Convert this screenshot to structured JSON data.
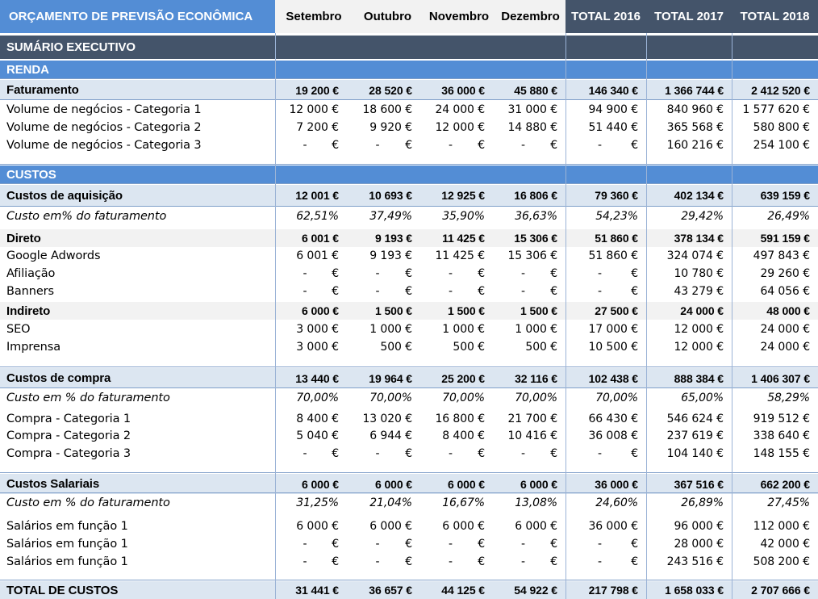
{
  "header": {
    "title": "ORÇAMENTO DE PREVISÃO ECONÔMICA",
    "months": [
      "Setembro",
      "Outubro",
      "Novembro",
      "Dezembro"
    ],
    "totals": [
      "TOTAL 2016",
      "TOTAL 2017",
      "TOTAL 2018"
    ]
  },
  "colors": {
    "title_bg": "#538dd5",
    "total_header_bg": "#44546a",
    "section_bg": "#538dd5",
    "group_bg": "#dce6f1"
  },
  "rows": [
    {
      "type": "summary",
      "label": "SUMÁRIO EXECUTIVO"
    },
    {
      "type": "section",
      "label": "RENDA"
    },
    {
      "type": "group",
      "label": "Faturamento",
      "values": [
        "19 200 €",
        "28 520 €",
        "36 000 €",
        "45 880 €",
        "146 340 €",
        "1 366 744 €",
        "2 412 520 €"
      ]
    },
    {
      "type": "item",
      "label": "Volume de negócios - Categoria 1",
      "values": [
        "12 000 €",
        "18 600 €",
        "24 000 €",
        "31 000 €",
        "94 900 €",
        "840 960 €",
        "1 577 620 €"
      ]
    },
    {
      "type": "item",
      "label": "Volume de negócios - Categoria 2",
      "values": [
        "7 200 €",
        "9 920 €",
        "12 000 €",
        "14 880 €",
        "51 440 €",
        "365 568 €",
        "580 800 €"
      ]
    },
    {
      "type": "item",
      "label": "Volume de negócios - Categoria 3",
      "values": [
        "-",
        "-",
        "-",
        "-",
        "-",
        "160 216 €",
        "254 100 €"
      ]
    },
    {
      "type": "section",
      "label": "CUSTOS"
    },
    {
      "type": "group",
      "label": "Custos de aquisição",
      "values": [
        "12 001 €",
        "10 693 €",
        "12 925 €",
        "16 806 €",
        "79 360 €",
        "402 134 €",
        "639 159 €"
      ]
    },
    {
      "type": "pct",
      "label": "Custo em% do faturamento",
      "values": [
        "62,51%",
        "37,49%",
        "35,90%",
        "36,63%",
        "54,23%",
        "29,42%",
        "26,49%"
      ]
    },
    {
      "type": "subgroup",
      "label": "Direto",
      "values": [
        "6 001 €",
        "9 193 €",
        "11 425 €",
        "15 306 €",
        "51 860 €",
        "378 134 €",
        "591 159 €"
      ]
    },
    {
      "type": "item",
      "label": "Google Adwords",
      "values": [
        "6 001 €",
        "9 193 €",
        "11 425 €",
        "15 306 €",
        "51 860 €",
        "324 074 €",
        "497 843 €"
      ]
    },
    {
      "type": "item",
      "label": "Afiliação",
      "values": [
        "-",
        "-",
        "-",
        "-",
        "-",
        "10 780 €",
        "29 260 €"
      ]
    },
    {
      "type": "item",
      "label": "Banners",
      "values": [
        "-",
        "-",
        "-",
        "-",
        "-",
        "43 279 €",
        "64 056 €"
      ]
    },
    {
      "type": "subgroup",
      "label": "Indireto",
      "values": [
        "6 000 €",
        "1 500 €",
        "1 500 €",
        "1 500 €",
        "27 500 €",
        "24 000 €",
        "48 000 €"
      ]
    },
    {
      "type": "item",
      "label": "SEO",
      "values": [
        "3 000 €",
        "1 000 €",
        "1 000 €",
        "1 000 €",
        "17 000 €",
        "12 000 €",
        "24 000 €"
      ]
    },
    {
      "type": "item",
      "label": "Imprensa",
      "values": [
        "3 000 €",
        "500 €",
        "500 €",
        "500 €",
        "10 500 €",
        "12 000 €",
        "24 000 €"
      ]
    },
    {
      "type": "group",
      "label": "Custos de compra",
      "values": [
        "13 440 €",
        "19 964 €",
        "25 200 €",
        "32 116 €",
        "102 438 €",
        "888 384 €",
        "1 406 307 €"
      ]
    },
    {
      "type": "pct",
      "label": "Custo em % do faturamento",
      "values": [
        "70,00%",
        "70,00%",
        "70,00%",
        "70,00%",
        "70,00%",
        "65,00%",
        "58,29%"
      ]
    },
    {
      "type": "item",
      "label": "Compra - Categoria 1",
      "values": [
        "8 400 €",
        "13 020 €",
        "16 800 €",
        "21 700 €",
        "66 430 €",
        "546 624 €",
        "919 512 €"
      ]
    },
    {
      "type": "item",
      "label": "Compra - Categoria 2",
      "values": [
        "5 040 €",
        "6 944 €",
        "8 400 €",
        "10 416 €",
        "36 008 €",
        "237 619 €",
        "338 640 €"
      ]
    },
    {
      "type": "item",
      "label": "Compra - Categoria 3",
      "values": [
        "-",
        "-",
        "-",
        "-",
        "-",
        "104 140 €",
        "148 155 €"
      ]
    },
    {
      "type": "group",
      "label": "Custos Salariais",
      "values": [
        "6 000 €",
        "6 000 €",
        "6 000 €",
        "6 000 €",
        "36 000 €",
        "367 516 €",
        "662 200 €"
      ]
    },
    {
      "type": "pct",
      "label": "Custo em % do faturamento",
      "values": [
        "31,25%",
        "21,04%",
        "16,67%",
        "13,08%",
        "24,60%",
        "26,89%",
        "27,45%"
      ]
    },
    {
      "type": "item",
      "label": "Salários em função 1",
      "values": [
        "6 000 €",
        "6 000 €",
        "6 000 €",
        "6 000 €",
        "36 000 €",
        "96 000 €",
        "112 000 €"
      ]
    },
    {
      "type": "item",
      "label": "Salários em função 1",
      "values": [
        "-",
        "-",
        "-",
        "-",
        "-",
        "28 000 €",
        "42 000 €"
      ]
    },
    {
      "type": "item",
      "label": "Salários em função 1",
      "values": [
        "-",
        "-",
        "-",
        "-",
        "-",
        "243 516 €",
        "508 200 €"
      ]
    },
    {
      "type": "total",
      "label": "TOTAL DE CUSTOS",
      "values": [
        "31 441 €",
        "36 657 €",
        "44 125 €",
        "54 922 €",
        "217 798 €",
        "1 658 033 €",
        "2 707 666 €"
      ]
    }
  ]
}
